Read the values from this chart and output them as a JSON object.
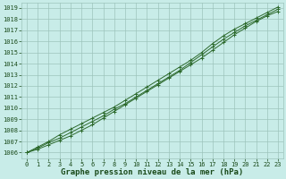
{
  "x": [
    0,
    1,
    2,
    3,
    4,
    5,
    6,
    7,
    8,
    9,
    10,
    11,
    12,
    13,
    14,
    15,
    16,
    17,
    18,
    19,
    20,
    21,
    22,
    23
  ],
  "line1": [
    1006.0,
    1006.3,
    1006.7,
    1007.1,
    1007.5,
    1008.0,
    1008.5,
    1009.1,
    1009.7,
    1010.3,
    1010.9,
    1011.5,
    1012.1,
    1012.7,
    1013.3,
    1013.9,
    1014.5,
    1015.2,
    1015.9,
    1016.6,
    1017.2,
    1017.8,
    1018.3,
    1018.7
  ],
  "line2": [
    1006.0,
    1006.4,
    1006.9,
    1007.3,
    1007.8,
    1008.3,
    1008.8,
    1009.3,
    1009.9,
    1010.4,
    1011.0,
    1011.6,
    1012.2,
    1012.8,
    1013.4,
    1014.1,
    1014.8,
    1015.5,
    1016.2,
    1016.8,
    1017.4,
    1017.9,
    1018.4,
    1018.9
  ],
  "line3": [
    1006.0,
    1006.5,
    1007.0,
    1007.6,
    1008.1,
    1008.6,
    1009.1,
    1009.6,
    1010.1,
    1010.7,
    1011.3,
    1011.9,
    1012.5,
    1013.1,
    1013.7,
    1014.3,
    1015.0,
    1015.8,
    1016.5,
    1017.1,
    1017.6,
    1018.1,
    1018.6,
    1019.1
  ],
  "line_color": "#2d6a2d",
  "marker_color": "#2d6a2d",
  "bg_color": "#c8ece8",
  "grid_color": "#9dc4bc",
  "xlabel": "Graphe pression niveau de la mer (hPa)",
  "xlabel_color": "#1a4a1a",
  "ylim": [
    1005.5,
    1019.5
  ],
  "xlim": [
    -0.5,
    23.5
  ],
  "yticks": [
    1006,
    1007,
    1008,
    1009,
    1010,
    1011,
    1012,
    1013,
    1014,
    1015,
    1016,
    1017,
    1018,
    1019
  ],
  "xticks": [
    0,
    1,
    2,
    3,
    4,
    5,
    6,
    7,
    8,
    9,
    10,
    11,
    12,
    13,
    14,
    15,
    16,
    17,
    18,
    19,
    20,
    21,
    22,
    23
  ],
  "tick_fontsize": 5,
  "xlabel_fontsize": 6.5,
  "line_width": 0.7,
  "marker_size": 2.5,
  "marker_ew": 0.7
}
